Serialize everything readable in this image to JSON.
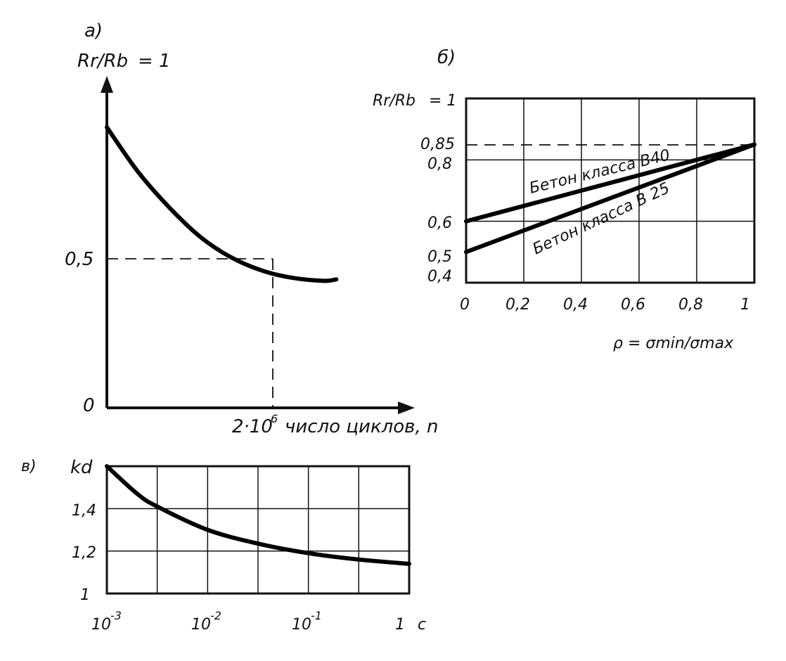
{
  "chart_data": [
    {
      "panel": "а)",
      "type": "line",
      "ylabel": "Rr/Rb",
      "ylabel_value": "= 1",
      "xlabel": "число циклов, n",
      "x_marker": "2·10",
      "x_marker_exp": "6",
      "yticks": [
        "0,5",
        "0"
      ],
      "xlim": [
        0,
        4
      ],
      "ylim": [
        0,
        1
      ],
      "series": [
        {
          "x": [
            0,
            0.5,
            1,
            1.5,
            2,
            2.5,
            3,
            3.5,
            3.7
          ],
          "y": [
            0.95,
            0.8,
            0.68,
            0.58,
            0.51,
            0.465,
            0.44,
            0.43,
            0.435
          ]
        }
      ]
    },
    {
      "panel": "б)",
      "type": "line",
      "ylabel": "Rr/Rb",
      "ylabel_value": "= 1",
      "xlabel": "ρ = σmin/σmax",
      "xticks": [
        "0",
        "0,2",
        "0,4",
        "0,6",
        "0,8",
        "1"
      ],
      "yticks": [
        "0,85",
        "0,8",
        "0,6",
        "0,5",
        "0,4"
      ],
      "xlim": [
        0,
        1
      ],
      "ylim": [
        0.4,
        1.0
      ],
      "series": [
        {
          "name": "Бетон класса В40",
          "x": [
            0,
            1
          ],
          "y": [
            0.6,
            0.85
          ]
        },
        {
          "name": "Бетон класса В 25",
          "x": [
            0,
            1
          ],
          "y": [
            0.5,
            0.85
          ]
        }
      ]
    },
    {
      "panel": "в)",
      "type": "line",
      "ylabel": "kd",
      "xlabel": "с",
      "xscale": "log",
      "xticks": [
        "10",
        "10",
        "10",
        "1"
      ],
      "xtick_exps": [
        "-3",
        "-2",
        "-1",
        ""
      ],
      "yticks": [
        "1,4",
        "1,2",
        "1"
      ],
      "xlim": [
        0.001,
        1
      ],
      "ylim": [
        1,
        1.6
      ],
      "series": [
        {
          "x": [
            0.001,
            0.002,
            0.00316,
            0.01,
            0.0316,
            0.1,
            0.316,
            1
          ],
          "y": [
            1.6,
            1.47,
            1.41,
            1.3,
            1.235,
            1.19,
            1.16,
            1.14
          ]
        }
      ]
    }
  ]
}
